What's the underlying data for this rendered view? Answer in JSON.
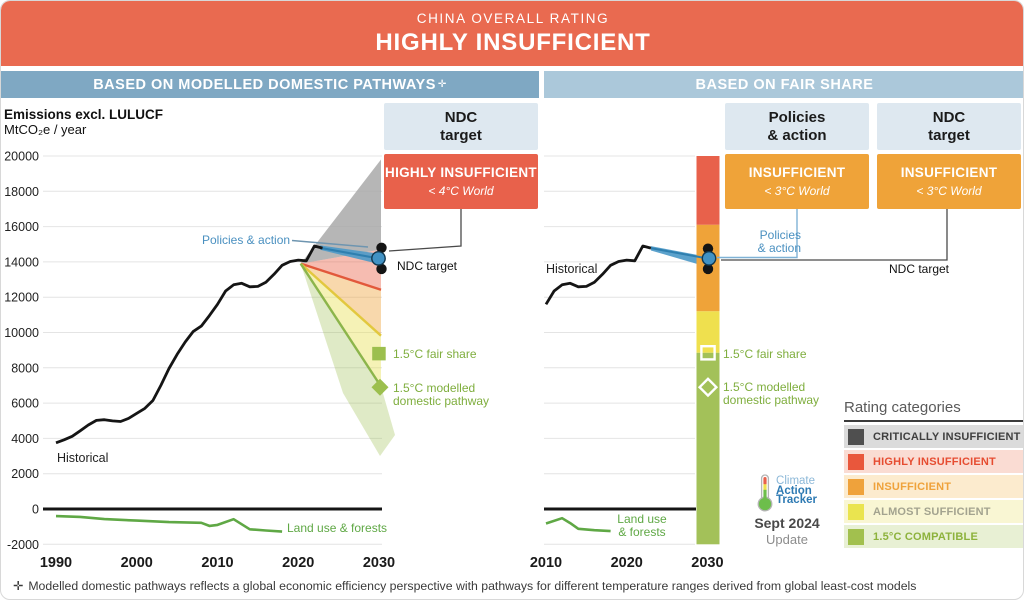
{
  "banner": {
    "title": "CHINA OVERALL RATING",
    "rating": "HIGHLY INSUFFICIENT"
  },
  "panels": {
    "left": {
      "header": "BASED ON MODELLED DOMESTIC PATHWAYS",
      "sup": "✛"
    },
    "right": {
      "header": "BASED ON FAIR SHARE"
    }
  },
  "axis": {
    "title": "Emissions excl. LULUCF",
    "unit": "MtCO₂e / year"
  },
  "boxes": {
    "left_ndc": {
      "line1": "NDC",
      "line2": "target",
      "rating": "HIGHLY INSUFFICIENT",
      "sub": "< 4°C World"
    },
    "right_pa": {
      "line1": "Policies",
      "line2": "& action",
      "rating": "INSUFFICIENT",
      "sub": "< 3°C World"
    },
    "right_ndc": {
      "line1": "NDC",
      "line2": "target",
      "rating": "INSUFFICIENT",
      "sub": "< 3°C World"
    }
  },
  "annotations": {
    "left": {
      "policies_action": "Policies & action",
      "ndc_target": "NDC target",
      "historical": "Historical",
      "fair_share": "1.5°C fair share",
      "modelled_line1": "1.5°C modelled",
      "modelled_line2": "domestic pathway",
      "land_use": "Land use & forests"
    },
    "right": {
      "historical": "Historical",
      "policies_line1": "Policies",
      "policies_line2": "& action",
      "ndc_target": "NDC target",
      "fair_share": "1.5°C fair share",
      "modelled_line1": "1.5°C modelled",
      "modelled_line2": "domestic pathway",
      "land_use_line1": "Land use",
      "land_use_line2": "& forests"
    }
  },
  "legend": {
    "title": "Rating categories",
    "items": [
      {
        "label": "CRITICALLY INSUFFICIENT",
        "swatch": "#4F4F4F",
        "bg": "#DBDBDB",
        "fg": "#3F3F3F"
      },
      {
        "label": "HIGHLY INSUFFICIENT",
        "swatch": "#E9573C",
        "bg": "#FADCD3",
        "fg": "#E64C31"
      },
      {
        "label": "INSUFFICIENT",
        "swatch": "#EFA23B",
        "bg": "#FCEBCE",
        "fg": "#EFA23B"
      },
      {
        "label": "ALMOST SUFFICIENT",
        "swatch": "#EAE44F",
        "bg": "#F9F6D3",
        "fg": "#A3A38F"
      },
      {
        "label": "1.5°C COMPATIBLE",
        "swatch": "#A2C04E",
        "bg": "#E8F0D4",
        "fg": "#8DB23C"
      }
    ]
  },
  "logo": {
    "line1": "Climate",
    "line2": "Action",
    "line3": "Tracker",
    "date": "Sept 2024",
    "update": "Update"
  },
  "footnote": {
    "symbol": "✛",
    "text": "Modelled domestic pathways reflects a global economic efficiency perspective with pathways for different temperature ranges derived from global least-cost models"
  },
  "chart_data": [
    {
      "id": "based-on-modelled-domestic-pathways",
      "type": "line",
      "title": "Emissions excl. LULUCF",
      "ylabel": "MtCO₂e / year",
      "xlim": [
        1990,
        2030
      ],
      "ylim": [
        -2000,
        20000
      ],
      "x_ticks": [
        1990,
        2000,
        2010,
        2020,
        2030
      ],
      "y_ticks": [
        -2000,
        0,
        2000,
        4000,
        6000,
        8000,
        10000,
        12000,
        14000,
        16000,
        18000,
        20000
      ],
      "series": {
        "historical": {
          "name": "Historical",
          "color": "#151515",
          "points": [
            [
              1990,
              3750
            ],
            [
              1991,
              3920
            ],
            [
              1992,
              4120
            ],
            [
              1993,
              4430
            ],
            [
              1994,
              4760
            ],
            [
              1995,
              5020
            ],
            [
              1996,
              5060
            ],
            [
              1997,
              4990
            ],
            [
              1998,
              4960
            ],
            [
              1999,
              5140
            ],
            [
              2000,
              5420
            ],
            [
              2001,
              5700
            ],
            [
              2002,
              6150
            ],
            [
              2003,
              7020
            ],
            [
              2004,
              7960
            ],
            [
              2005,
              8760
            ],
            [
              2006,
              9460
            ],
            [
              2007,
              10060
            ],
            [
              2008,
              10360
            ],
            [
              2009,
              10960
            ],
            [
              2010,
              11600
            ],
            [
              2011,
              12350
            ],
            [
              2012,
              12700
            ],
            [
              2013,
              12790
            ],
            [
              2014,
              12590
            ],
            [
              2015,
              12610
            ],
            [
              2016,
              12850
            ],
            [
              2017,
              13300
            ],
            [
              2018,
              13810
            ],
            [
              2019,
              14020
            ],
            [
              2020,
              14100
            ],
            [
              2021,
              14060
            ],
            [
              2022,
              14900
            ],
            [
              2023,
              14780
            ]
          ]
        },
        "land_use": {
          "name": "Land use & forests",
          "color": "#5FA845",
          "points": [
            [
              1990,
              -400
            ],
            [
              1993,
              -450
            ],
            [
              1996,
              -570
            ],
            [
              2000,
              -660
            ],
            [
              2004,
              -740
            ],
            [
              2008,
              -780
            ],
            [
              2009,
              -960
            ],
            [
              2010,
              -900
            ],
            [
              2012,
              -580
            ],
            [
              2014,
              -1150
            ],
            [
              2016,
              -1220
            ],
            [
              2018,
              -1280
            ]
          ]
        },
        "policies_action": {
          "name": "Policies & action",
          "color": "#4E9AC8",
          "start_year": 2022.7,
          "start_value": 14800,
          "range_2030": [
            13850,
            14450
          ],
          "central_2030": 14200
        },
        "ndc_target": {
          "name": "NDC target",
          "range_2030": [
            13600,
            14800
          ]
        },
        "fair_share_1p5": {
          "name": "1.5°C fair share",
          "value_2030": 8800,
          "color": "#9CBF4E"
        },
        "modelled_pathway_1p5": {
          "name": "1.5°C modelled domestic pathway",
          "value_2030": 6900,
          "color": "#9CBF4E"
        },
        "fan": {
          "apex": [
            2020.3,
            13900
          ],
          "boundaries_2030": {
            "gray_top": 19800,
            "gray_bottom": 14700,
            "red_line": 12420,
            "yellow_line": 9820,
            "green_line": 6940,
            "shading_bottom": 3200
          }
        }
      }
    },
    {
      "id": "based-on-fair-share",
      "type": "line",
      "xlim": [
        2010,
        2030
      ],
      "ylim": [
        -2000,
        20000
      ],
      "x_ticks": [
        2010,
        2020,
        2030
      ],
      "series": {
        "historical": {
          "name": "Historical",
          "color": "#151515",
          "points": [
            [
              2010,
              11600
            ],
            [
              2011,
              12350
            ],
            [
              2012,
              12700
            ],
            [
              2013,
              12790
            ],
            [
              2014,
              12590
            ],
            [
              2015,
              12610
            ],
            [
              2016,
              12850
            ],
            [
              2017,
              13300
            ],
            [
              2018,
              13810
            ],
            [
              2019,
              14020
            ],
            [
              2020,
              14100
            ],
            [
              2021,
              14060
            ],
            [
              2022,
              14900
            ],
            [
              2023,
              14780
            ]
          ]
        },
        "land_use": {
          "name": "Land use & forests",
          "color": "#5FA845",
          "points": [
            [
              2010,
              -820
            ],
            [
              2012,
              -520
            ],
            [
              2013,
              -800
            ],
            [
              2014,
              -1120
            ],
            [
              2016,
              -1200
            ],
            [
              2018,
              -1250
            ]
          ]
        },
        "policies_action": {
          "name": "Policies & action",
          "color": "#4E9AC8",
          "start_year": 2023,
          "start_value": 14780,
          "range_2030": [
            13900,
            14400
          ],
          "central_2030": 14200
        },
        "ndc_target": {
          "name": "NDC target",
          "range_2030": [
            13600,
            14750
          ]
        },
        "fair_share_1p5": {
          "name": "1.5°C fair share",
          "value_2030": 8850
        },
        "modelled_pathway_1p5": {
          "name": "1.5°C modelled domestic pathway",
          "value_2030": 6900
        },
        "rating_bar_2030": {
          "segments": [
            {
              "rating": "HIGHLY INSUFFICIENT",
              "from": 16100,
              "to": 20000,
              "color": "#E8614B"
            },
            {
              "rating": "INSUFFICIENT",
              "from": 11200,
              "to": 16100,
              "color": "#EFA339"
            },
            {
              "rating": "ALMOST SUFFICIENT",
              "from": 8850,
              "to": 11200,
              "color": "#EFE04E"
            },
            {
              "rating": "1.5°C COMPATIBLE",
              "from": -2000,
              "to": 8850,
              "color": "#A3C159"
            }
          ]
        }
      }
    }
  ]
}
